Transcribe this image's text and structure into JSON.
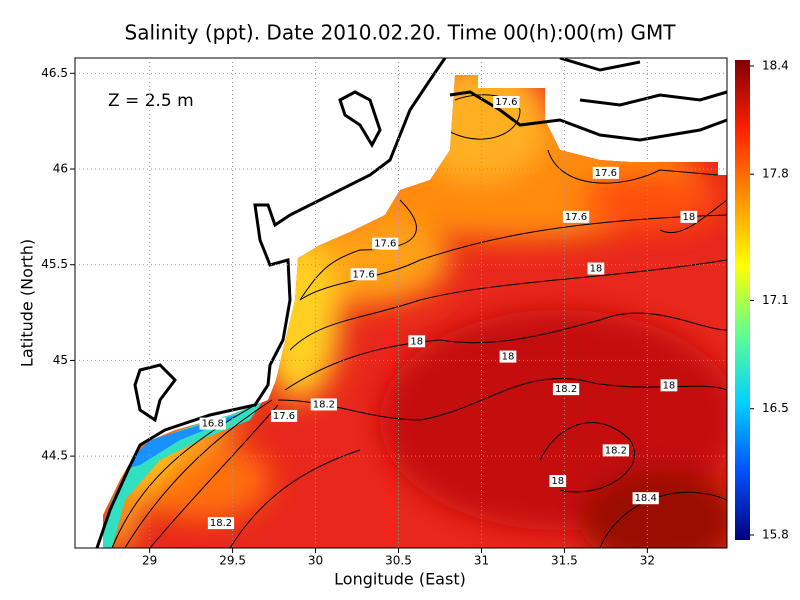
{
  "chart_data": {
    "type": "contour-map",
    "title": "Salinity (ppt). Date 2010.02.20. Time 00(h):00(m) GMT",
    "annotation": "Z = 2.5 m",
    "x_label": "Longitude (East)",
    "y_label": "Latitude (North)",
    "xlim": [
      28.55,
      32.48
    ],
    "ylim": [
      44.02,
      46.58
    ],
    "xticks": [
      29,
      29.5,
      30,
      30.5,
      31,
      31.5,
      32
    ],
    "yticks": [
      44.5,
      45,
      45.5,
      46,
      46.5
    ],
    "grid": true,
    "colorbar": {
      "lim": [
        15.8,
        18.4
      ],
      "ticks": [
        15.8,
        16.5,
        17.1,
        17.8,
        18.4
      ],
      "colors": [
        "#00007f",
        "#0050ff",
        "#00d0ff",
        "#60ff90",
        "#ffff00",
        "#ff9000",
        "#ff2000",
        "#7f0000"
      ]
    },
    "contour_labels": {
      "values": [
        17.6,
        17.6,
        17.6,
        18,
        17.6,
        18,
        17.6,
        18,
        18,
        18.2,
        18.2,
        18,
        16.8,
        17.6,
        18.2,
        18,
        18.4,
        18.2
      ],
      "x": [
        31.15,
        31.75,
        31.57,
        32.25,
        30.42,
        31.69,
        30.29,
        30.61,
        31.16,
        30.05,
        31.51,
        32.13,
        29.38,
        29.81,
        31.81,
        31.46,
        31.99,
        29.43
      ],
      "y": [
        46.35,
        45.98,
        45.75,
        45.75,
        45.61,
        45.48,
        45.45,
        45.1,
        45.02,
        44.77,
        44.85,
        44.87,
        44.67,
        44.71,
        44.53,
        44.37,
        44.28,
        44.15
      ]
    }
  }
}
